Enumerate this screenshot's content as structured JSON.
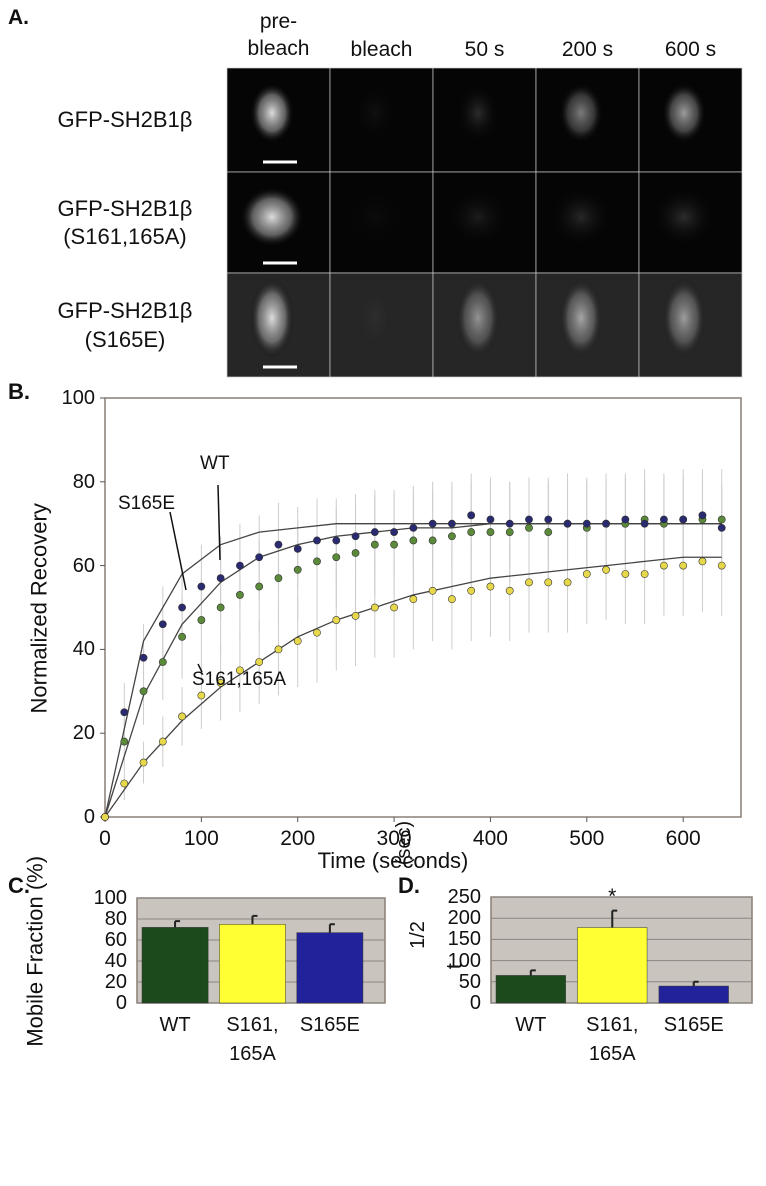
{
  "image_panel": {
    "label": "A.",
    "column_headers": [
      "pre-\nbleach",
      "bleach",
      "50 s",
      "200 s",
      "600 s"
    ],
    "row_labels": [
      "GFP-SH2B1β",
      "GFP-SH2B1β\n(S161,165A)",
      "GFP-SH2B1β\n(S165E)"
    ]
  },
  "chart_data": [
    {
      "type": "scatter",
      "panel_label": "B.",
      "x_label": "Time (seconds)",
      "y_label": "Normalized Recovery",
      "xlim": [
        0,
        660
      ],
      "xticks": [
        0,
        100,
        200,
        300,
        400,
        500,
        600
      ],
      "ylim": [
        0,
        100
      ],
      "yticks": [
        0,
        20,
        40,
        60,
        80,
        100
      ],
      "x": [
        0,
        20,
        40,
        60,
        80,
        100,
        120,
        140,
        160,
        180,
        200,
        220,
        240,
        260,
        280,
        300,
        320,
        340,
        360,
        380,
        400,
        420,
        440,
        460,
        480,
        500,
        520,
        540,
        560,
        580,
        600,
        620,
        640
      ],
      "series": [
        {
          "color": "#5a8a3a",
          "values": [
            0,
            18,
            30,
            37,
            43,
            47,
            50,
            53,
            55,
            57,
            59,
            61,
            62,
            63,
            65,
            65,
            66,
            66,
            67,
            68,
            68,
            68,
            69,
            68,
            70,
            69,
            70,
            70,
            71,
            70,
            71,
            71,
            71
          ],
          "errors": [
            0,
            6,
            8,
            9,
            10,
            10,
            11,
            11,
            11,
            11,
            12,
            12,
            12,
            12,
            12,
            12,
            12,
            12,
            12,
            12,
            12,
            12,
            12,
            12,
            12,
            12,
            12,
            12,
            12,
            12,
            12,
            12,
            12
          ]
        },
        {
          "color": "#2a2a70",
          "values": [
            0,
            25,
            38,
            46,
            50,
            55,
            57,
            60,
            62,
            65,
            64,
            66,
            66,
            67,
            68,
            68,
            69,
            70,
            70,
            72,
            71,
            70,
            71,
            71,
            70,
            70,
            70,
            71,
            70,
            71,
            71,
            72,
            69
          ],
          "errors": [
            0,
            7,
            8,
            9,
            9,
            10,
            10,
            10,
            10,
            10,
            10,
            10,
            10,
            10,
            10,
            10,
            10,
            10,
            10,
            10,
            10,
            10,
            10,
            10,
            10,
            10,
            10,
            10,
            10,
            10,
            10,
            10,
            10
          ]
        },
        {
          "color": "#e6d84a",
          "values": [
            0,
            8,
            13,
            18,
            24,
            29,
            32,
            35,
            37,
            40,
            42,
            44,
            47,
            48,
            50,
            50,
            52,
            54,
            52,
            54,
            55,
            54,
            56,
            56,
            56,
            58,
            59,
            58,
            58,
            60,
            60,
            61,
            60
          ],
          "errors": [
            0,
            4,
            5,
            6,
            7,
            8,
            9,
            10,
            10,
            11,
            11,
            12,
            12,
            12,
            12,
            12,
            12,
            12,
            12,
            12,
            12,
            12,
            12,
            12,
            12,
            12,
            12,
            12,
            12,
            12,
            12,
            12,
            12
          ]
        }
      ],
      "fit_x": [
        0,
        40,
        80,
        120,
        160,
        200,
        240,
        280,
        320,
        360,
        400,
        440,
        480,
        520,
        560,
        600,
        640
      ],
      "fits": [
        {
          "values": [
            0,
            29,
            46,
            56,
            62,
            65,
            67,
            68,
            69,
            69,
            70,
            70,
            70,
            70,
            70,
            70,
            70
          ]
        },
        {
          "values": [
            0,
            42,
            58,
            65,
            68,
            69,
            70,
            70,
            70,
            70,
            70,
            70,
            70,
            70,
            70,
            70,
            70
          ]
        },
        {
          "values": [
            0,
            13,
            23,
            31,
            37,
            43,
            47,
            50,
            53,
            55,
            57,
            58,
            59,
            60,
            61,
            62,
            62
          ]
        }
      ],
      "annotations": [
        "WT",
        "S165E",
        "S161,165A"
      ]
    },
    {
      "type": "bar",
      "panel_label": "C.",
      "y_label": "Mobile Fraction (%)",
      "categories": [
        "WT",
        "S161,\n165A",
        "S165E"
      ],
      "values": [
        72,
        75,
        67
      ],
      "errors": [
        6,
        8,
        8
      ],
      "colors": [
        "#1c4a1c",
        "#ffff33",
        "#22229a"
      ],
      "ylim": [
        0,
        100
      ],
      "yticks": [
        0,
        20,
        40,
        60,
        80,
        100
      ],
      "grid": true
    },
    {
      "type": "bar",
      "panel_label": "D.",
      "y_label": "t",
      "y_label_sub": "1/2",
      "y_label_unit": "(sec)",
      "categories": [
        "WT",
        "S161,\n165A",
        "S165E"
      ],
      "values": [
        65,
        178,
        40
      ],
      "errors": [
        12,
        40,
        10
      ],
      "colors": [
        "#1c4a1c",
        "#ffff33",
        "#22229a"
      ],
      "ylim": [
        0,
        250
      ],
      "yticks": [
        0,
        50,
        100,
        150,
        200,
        250
      ],
      "grid": true,
      "annotations": [
        "*"
      ]
    }
  ]
}
